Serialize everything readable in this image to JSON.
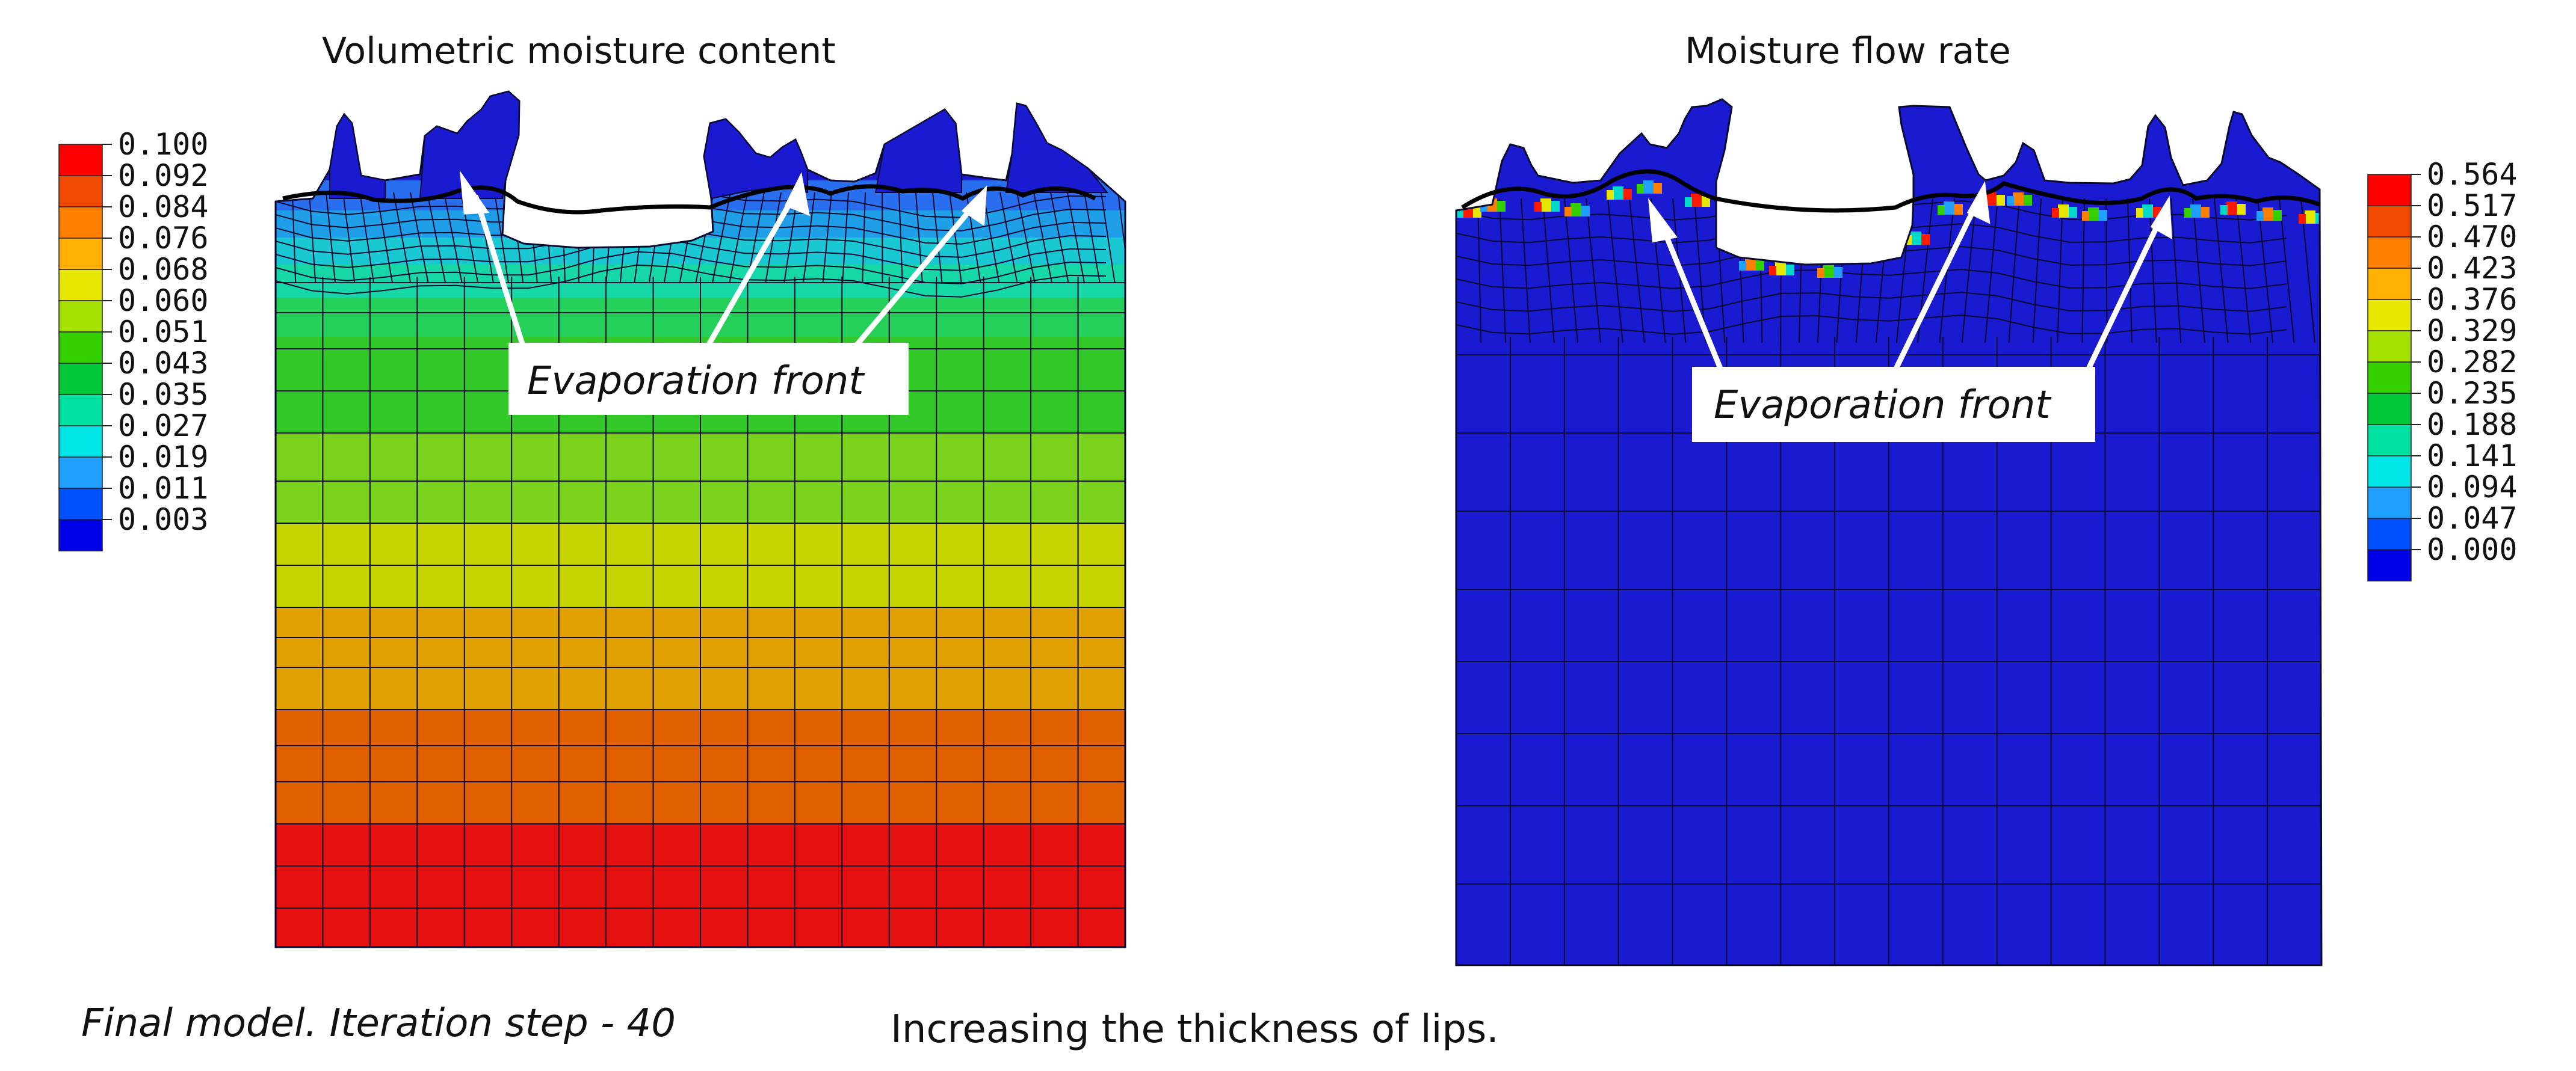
{
  "panels": [
    {
      "title": "Volumetric moisture content",
      "legend": {
        "values": [
          "0.100",
          "0.092",
          "0.084",
          "0.076",
          "0.068",
          "0.060",
          "0.051",
          "0.043",
          "0.035",
          "0.027",
          "0.019",
          "0.011",
          "0.003"
        ],
        "colors": [
          "#ff0000",
          "#f04a00",
          "#ff8000",
          "#ffb000",
          "#e6e600",
          "#a6e000",
          "#35d000",
          "#00c838",
          "#00e0a0",
          "#00e6e6",
          "#1fa0ff",
          "#0050ff",
          "#0000e6"
        ]
      },
      "annotation": "Evaporation front"
    },
    {
      "title": "Moisture flow rate",
      "legend": {
        "values": [
          "0.564",
          "0.517",
          "0.470",
          "0.423",
          "0.376",
          "0.329",
          "0.282",
          "0.235",
          "0.188",
          "0.141",
          "0.094",
          "0.047",
          "0.000"
        ],
        "colors": [
          "#ff0000",
          "#f04a00",
          "#ff8000",
          "#ffb000",
          "#e6e600",
          "#a6e000",
          "#35d000",
          "#00c838",
          "#00e0a0",
          "#00e6e6",
          "#1fa0ff",
          "#0050ff",
          "#0000e6"
        ]
      },
      "annotation": "Evaporation front"
    }
  ],
  "captions": {
    "left": "Final model. Iteration step - 40",
    "right": "Increasing the thickness of lips."
  },
  "colors": {
    "deep_blue": "#1a1ad0",
    "mesh": "#0a0a30",
    "front": "#000000",
    "arrow": "#ffffff"
  }
}
